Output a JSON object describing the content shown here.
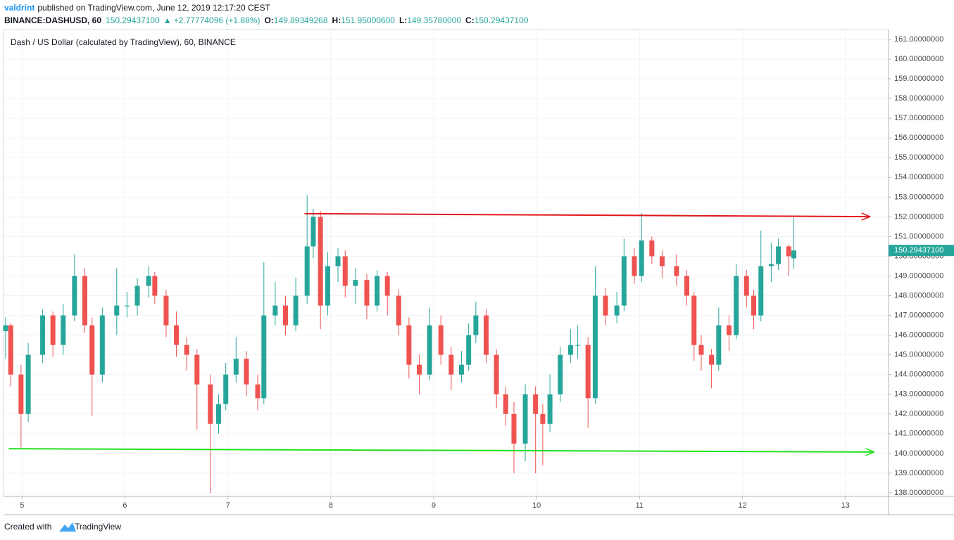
{
  "chart_data": {
    "type": "candlestick",
    "publisher": "valdrint",
    "published": "published on TradingView.com, June 12, 2019 12:17:20 CEST",
    "symbol": "BINANCE:DASHUSD, 60",
    "last_text": "150.29437100",
    "change_text": "+2.77774096 (+1.88%)",
    "ohlc_text": [
      {
        "label": "O:",
        "text": "149.89349268"
      },
      {
        "label": "H:",
        "text": "151.95000600"
      },
      {
        "label": "L:",
        "text": "149.35780000"
      },
      {
        "label": "C:",
        "text": "150.29437100"
      }
    ],
    "title": "Dash / US Dollar (calculated by TradingView), 60, BINANCE",
    "footer": "Created with",
    "brand": "TradingView",
    "up_color": "#26a69a",
    "down_color": "#ef5350",
    "grid": true,
    "xlim": [
      4.82,
      13.42
    ],
    "xticks": [
      5,
      6,
      7,
      8,
      9,
      10,
      11,
      12,
      13
    ],
    "ylim": [
      137.82,
      161.5
    ],
    "yticks": [
      {
        "value": 138,
        "label": "138.00000000"
      },
      {
        "value": 139,
        "label": "139.00000000"
      },
      {
        "value": 140,
        "label": "140.00000000"
      },
      {
        "value": 141,
        "label": "141.00000000"
      },
      {
        "value": 142,
        "label": "142.00000000"
      },
      {
        "value": 143,
        "label": "143.00000000"
      },
      {
        "value": 144,
        "label": "144.00000000"
      },
      {
        "value": 145,
        "label": "145.00000000"
      },
      {
        "value": 146,
        "label": "146.00000000"
      },
      {
        "value": 147,
        "label": "147.00000000"
      },
      {
        "value": 148,
        "label": "148.00000000"
      },
      {
        "value": 149,
        "label": "149.00000000"
      },
      {
        "value": 150,
        "label": "150.00000000"
      },
      {
        "value": 151,
        "label": "151.00000000"
      },
      {
        "value": 152,
        "label": "152.00000000"
      },
      {
        "value": 153,
        "label": "153.00000000"
      },
      {
        "value": 154,
        "label": "154.00000000"
      },
      {
        "value": 155,
        "label": "155.00000000"
      },
      {
        "value": 156,
        "label": "156.00000000"
      },
      {
        "value": 157,
        "label": "157.00000000"
      },
      {
        "value": 158,
        "label": "158.00000000"
      },
      {
        "value": 159,
        "label": "159.00000000"
      },
      {
        "value": 160,
        "label": "160.00000000"
      },
      {
        "value": 161,
        "label": "161.00000000"
      }
    ],
    "last_price": {
      "value": 150.294371,
      "label": "150.29437100"
    },
    "x": [
      4.84,
      4.89,
      4.99,
      5.06,
      5.2,
      5.3,
      5.4,
      5.51,
      5.61,
      5.68,
      5.78,
      5.92,
      6.02,
      6.12,
      6.23,
      6.29,
      6.4,
      6.5,
      6.6,
      6.7,
      6.83,
      6.91,
      6.98,
      7.08,
      7.18,
      7.29,
      7.35,
      7.46,
      7.56,
      7.66,
      7.77,
      7.83,
      7.9,
      7.97,
      8.07,
      8.14,
      8.24,
      8.35,
      8.45,
      8.55,
      8.66,
      8.76,
      8.86,
      8.96,
      9.07,
      9.17,
      9.27,
      9.34,
      9.41,
      9.51,
      9.61,
      9.7,
      9.78,
      9.89,
      9.99,
      10.06,
      10.13,
      10.23,
      10.33,
      10.4,
      10.5,
      10.57,
      10.67,
      10.78,
      10.85,
      10.95,
      11.02,
      11.12,
      11.22,
      11.36,
      11.46,
      11.53,
      11.6,
      11.7,
      11.77,
      11.87,
      11.94,
      12.04,
      12.11,
      12.18,
      12.28,
      12.35,
      12.45,
      12.5
    ],
    "open": [
      146.2,
      146.5,
      144.0,
      142.0,
      145.0,
      147.0,
      145.5,
      147.0,
      149.0,
      146.5,
      144.0,
      147.0,
      147.5,
      147.5,
      148.5,
      149.0,
      148.0,
      146.5,
      145.5,
      145.0,
      143.5,
      141.5,
      142.5,
      144.0,
      144.8,
      143.5,
      142.8,
      147.0,
      147.5,
      146.5,
      148.0,
      150.5,
      152.0,
      147.5,
      149.5,
      150.0,
      148.5,
      148.8,
      147.5,
      149.0,
      148.0,
      146.5,
      144.5,
      144.0,
      146.5,
      145.0,
      144.0,
      144.5,
      146.0,
      147.0,
      145.0,
      143.0,
      142.0,
      140.5,
      143.0,
      142.0,
      141.5,
      143.0,
      145.0,
      145.5,
      145.5,
      142.8,
      148.0,
      147.0,
      147.5,
      150.0,
      149.0,
      150.8,
      150.0,
      149.5,
      149.0,
      148.0,
      145.5,
      145.0,
      144.5,
      146.5,
      146.0,
      149.0,
      148.0,
      147.0,
      149.5,
      149.6,
      150.5,
      149.89349268
    ],
    "high": [
      146.9,
      146.6,
      144.5,
      145.6,
      147.3,
      147.2,
      147.6,
      150.1,
      149.4,
      146.9,
      147.4,
      149.4,
      148.2,
      148.9,
      149.5,
      149.2,
      148.3,
      147.2,
      145.9,
      145.3,
      144.0,
      143.0,
      144.6,
      145.9,
      145.2,
      144.0,
      149.7,
      148.7,
      148.0,
      148.9,
      153.1,
      152.4,
      152.3,
      150.2,
      150.4,
      150.3,
      149.4,
      149.1,
      149.3,
      149.2,
      148.3,
      146.9,
      145.0,
      147.4,
      147.0,
      145.4,
      145.2,
      146.6,
      147.7,
      147.3,
      145.3,
      143.4,
      142.6,
      143.5,
      143.4,
      142.5,
      144.0,
      145.4,
      146.3,
      146.5,
      145.9,
      149.5,
      148.4,
      148.2,
      150.9,
      150.4,
      152.2,
      151.0,
      150.3,
      150.1,
      149.3,
      148.2,
      146.0,
      145.3,
      147.4,
      147.0,
      149.6,
      149.3,
      148.3,
      151.3,
      150.7,
      150.9,
      150.6,
      151.950006
    ],
    "low": [
      144.8,
      143.4,
      140.3,
      141.6,
      144.6,
      144.9,
      145.0,
      146.7,
      146.1,
      141.9,
      143.6,
      146.0,
      146.9,
      147.0,
      147.9,
      147.6,
      145.9,
      144.9,
      144.2,
      141.2,
      138.0,
      141.0,
      142.2,
      143.6,
      142.9,
      142.2,
      142.5,
      146.5,
      146.0,
      146.2,
      147.6,
      149.9,
      146.3,
      147.0,
      148.7,
      147.9,
      147.6,
      146.8,
      147.2,
      147.0,
      146.0,
      143.8,
      143.0,
      143.7,
      144.5,
      143.2,
      143.6,
      144.2,
      145.6,
      144.6,
      142.3,
      141.4,
      139.0,
      139.6,
      139.0,
      139.4,
      141.1,
      142.6,
      144.6,
      144.8,
      141.3,
      142.5,
      146.5,
      146.6,
      147.2,
      148.6,
      148.7,
      149.6,
      148.9,
      148.5,
      147.5,
      144.7,
      144.2,
      143.3,
      144.2,
      145.2,
      145.8,
      147.4,
      146.3,
      146.7,
      148.7,
      149.3,
      149.0,
      149.3578
    ],
    "close": [
      146.5,
      144.0,
      142.0,
      145.0,
      147.0,
      145.5,
      147.0,
      149.0,
      146.5,
      144.0,
      147.0,
      147.5,
      147.5,
      148.5,
      149.0,
      148.0,
      146.5,
      145.5,
      145.0,
      143.5,
      141.5,
      142.5,
      144.0,
      144.8,
      143.5,
      142.8,
      147.0,
      147.5,
      146.5,
      148.0,
      150.5,
      152.0,
      147.5,
      149.5,
      150.0,
      148.5,
      148.8,
      147.5,
      149.0,
      148.0,
      146.5,
      144.5,
      144.0,
      146.5,
      145.0,
      144.0,
      144.5,
      146.0,
      147.0,
      145.0,
      143.0,
      142.0,
      140.5,
      143.0,
      142.0,
      141.5,
      143.0,
      145.0,
      145.5,
      145.5,
      142.8,
      148.0,
      147.0,
      147.5,
      150.0,
      149.0,
      150.8,
      150.0,
      149.5,
      149.0,
      148.0,
      145.5,
      145.0,
      144.5,
      146.5,
      146.0,
      149.0,
      148.0,
      147.0,
      149.5,
      149.6,
      150.5,
      150.0,
      150.294371
    ],
    "lines": [
      {
        "color": "#e3171b",
        "x": [
          7.745,
          13.24
        ],
        "y": [
          152.16,
          152.01
        ]
      },
      {
        "color": "#22e01e",
        "x": [
          4.87,
          13.28
        ],
        "y": [
          140.24,
          140.07
        ]
      }
    ]
  }
}
